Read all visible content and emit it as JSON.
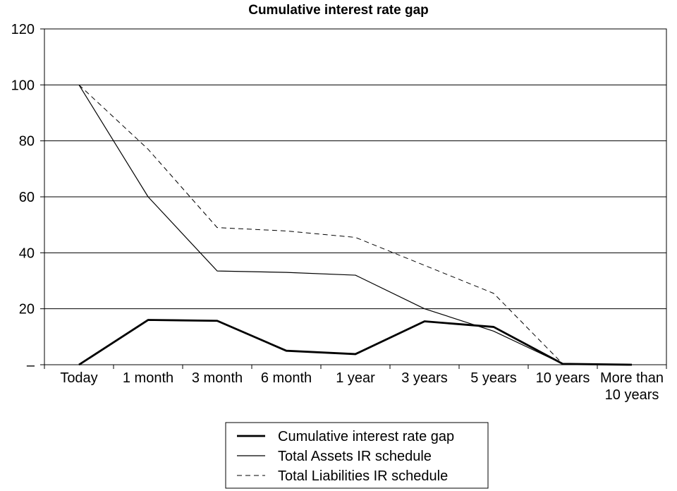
{
  "chart_data": {
    "type": "line",
    "title": "Cumulative interest rate gap",
    "xlabel": "",
    "ylabel": "",
    "categories": [
      "Today",
      "1 month",
      "3 month",
      "6 month",
      "1 year",
      "3 years",
      "5 years",
      "10 years",
      [
        "More than",
        "10 years"
      ]
    ],
    "y_ticks": [
      "–",
      "20",
      "40",
      "60",
      "80",
      "100",
      "120"
    ],
    "ylim": [
      0,
      120
    ],
    "grid": true,
    "legend_position": "bottom",
    "series": [
      {
        "name": "Cumulative interest rate gap",
        "style": "thick-solid",
        "color": "#000000",
        "values": [
          0,
          16,
          15.7,
          5,
          3.8,
          15.5,
          13.5,
          0.3,
          0
        ]
      },
      {
        "name": "Total Assets IR schedule",
        "style": "thin-solid",
        "color": "#000000",
        "values": [
          100,
          60,
          33.5,
          33,
          32,
          20,
          12,
          0.3,
          0
        ]
      },
      {
        "name": "Total Liabilities IR schedule",
        "style": "dashed",
        "color": "#000000",
        "values": [
          100,
          77,
          49,
          47.8,
          45.5,
          35.5,
          25.5,
          0.3,
          0
        ]
      }
    ]
  }
}
